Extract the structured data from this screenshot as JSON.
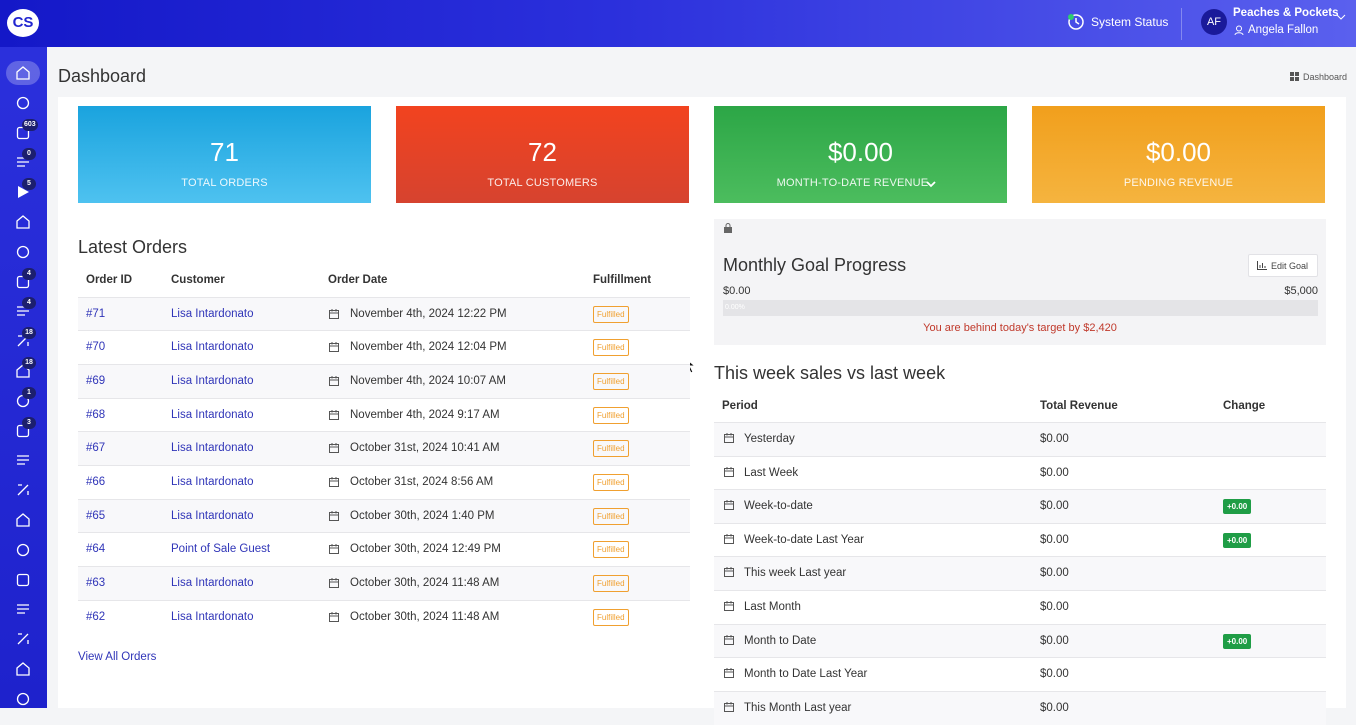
{
  "topbar": {
    "logo": "CS",
    "system_status": "System Status",
    "avatar": "AF",
    "store": "Peaches & Pockets",
    "user": "Angela Fallon"
  },
  "sidebar": {
    "badges": [
      "603",
      "0",
      "5",
      "4",
      "4",
      "18",
      "18",
      "1",
      "3"
    ]
  },
  "header": {
    "title": "Dashboard",
    "breadcrumb": "Dashboard"
  },
  "cards": [
    {
      "value": "71",
      "label": "TOTAL ORDERS"
    },
    {
      "value": "72",
      "label": "TOTAL CUSTOMERS"
    },
    {
      "value": "$0.00",
      "label": "MONTH-TO-DATE REVENUE"
    },
    {
      "value": "$0.00",
      "label": "PENDING REVENUE"
    }
  ],
  "latest_orders": {
    "title": "Latest Orders",
    "columns": [
      "Order ID",
      "Customer",
      "Order Date",
      "Fulfillment"
    ],
    "rows": [
      [
        "#71",
        "Lisa Intardonato",
        "November 4th, 2024 12:22 PM",
        "Fulfilled"
      ],
      [
        "#70",
        "Lisa Intardonato",
        "November 4th, 2024 12:04 PM",
        "Fulfilled"
      ],
      [
        "#69",
        "Lisa Intardonato",
        "November 4th, 2024 10:07 AM",
        "Fulfilled"
      ],
      [
        "#68",
        "Lisa Intardonato",
        "November 4th, 2024 9:17 AM",
        "Fulfilled"
      ],
      [
        "#67",
        "Lisa Intardonato",
        "October 31st, 2024 10:41 AM",
        "Fulfilled"
      ],
      [
        "#66",
        "Lisa Intardonato",
        "October 31st, 2024 8:56 AM",
        "Fulfilled"
      ],
      [
        "#65",
        "Lisa Intardonato",
        "October 30th, 2024 1:40 PM",
        "Fulfilled"
      ],
      [
        "#64",
        "Point of Sale Guest",
        "October 30th, 2024 12:49 PM",
        "Fulfilled"
      ],
      [
        "#63",
        "Lisa Intardonato",
        "October 30th, 2024 11:48 AM",
        "Fulfilled"
      ],
      [
        "#62",
        "Lisa Intardonato",
        "October 30th, 2024 11:48 AM",
        "Fulfilled"
      ]
    ],
    "view_all": "View All Orders"
  },
  "goal": {
    "title": "Monthly Goal Progress",
    "edit": "Edit Goal",
    "start": "$0.00",
    "target": "$5,000",
    "progress": "0.00%",
    "message": "You are behind today's target by $2,420"
  },
  "sales": {
    "title": "This week sales vs last week",
    "columns": [
      "Period",
      "Total Revenue",
      "Change"
    ],
    "rows": [
      {
        "period": "Yesterday",
        "revenue": "$0.00"
      },
      {
        "period": "Last Week",
        "revenue": "$0.00"
      },
      {
        "period": "Week-to-date",
        "revenue": "$0.00",
        "change": "+0.00"
      },
      {
        "period": "Week-to-date Last Year",
        "revenue": "$0.00",
        "change": "+0.00"
      },
      {
        "period": "This week Last year",
        "revenue": "$0.00"
      },
      {
        "period": "Last Month",
        "revenue": "$0.00"
      },
      {
        "period": "Month to Date",
        "revenue": "$0.00",
        "change": "+0.00"
      },
      {
        "period": "Month to Date Last Year",
        "revenue": "$0.00"
      },
      {
        "period": "This Month Last year",
        "revenue": "$0.00"
      }
    ]
  }
}
